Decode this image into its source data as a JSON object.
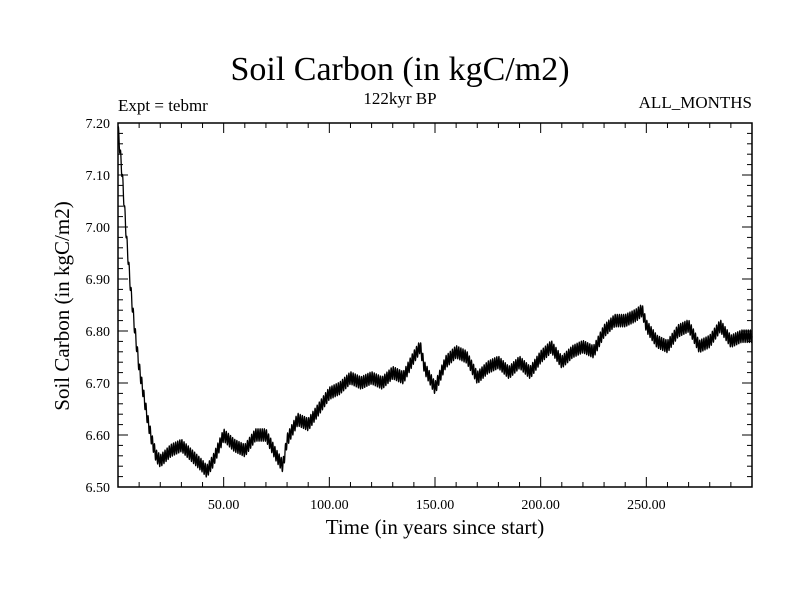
{
  "header": {
    "title": "Soil Carbon (in kgC/m2)",
    "subtitle": "122kyr BP",
    "experiment": "Expt = tebmr",
    "months": "ALL_MONTHS"
  },
  "chart_data": {
    "type": "line",
    "title": "Soil Carbon (in kgC/m2)",
    "subtitle": "122kyr BP",
    "xlabel": "Time (in years since start)",
    "ylabel": "Soil Carbon (in kgC/m2)",
    "xlim": [
      0,
      300
    ],
    "ylim": [
      6.5,
      7.2
    ],
    "xticks": [
      50,
      100,
      150,
      200,
      250
    ],
    "xtick_labels": [
      "50.00",
      "100.00",
      "150.00",
      "200.00",
      "250.00"
    ],
    "yticks": [
      6.5,
      6.6,
      6.7,
      6.8,
      6.9,
      7.0,
      7.1,
      7.2
    ],
    "ytick_labels": [
      "6.50",
      "6.60",
      "6.70",
      "6.80",
      "6.90",
      "7.00",
      "7.10",
      "7.20"
    ],
    "grid": false,
    "series": [
      {
        "name": "Soil Carbon",
        "seasonal_amplitude": 0.012,
        "x": [
          0,
          2,
          4,
          6,
          8,
          10,
          12,
          14,
          16,
          18,
          20,
          25,
          30,
          35,
          40,
          42,
          45,
          50,
          55,
          60,
          65,
          70,
          75,
          78,
          80,
          85,
          90,
          95,
          100,
          105,
          110,
          115,
          120,
          125,
          130,
          135,
          140,
          143,
          145,
          150,
          155,
          160,
          165,
          170,
          175,
          180,
          185,
          190,
          195,
          200,
          205,
          210,
          215,
          220,
          225,
          230,
          235,
          240,
          245,
          248,
          250,
          255,
          260,
          265,
          270,
          275,
          280,
          285,
          290,
          295,
          300
        ],
        "values": [
          7.19,
          7.1,
          6.98,
          6.88,
          6.8,
          6.73,
          6.68,
          6.63,
          6.59,
          6.56,
          6.55,
          6.57,
          6.58,
          6.56,
          6.54,
          6.53,
          6.55,
          6.6,
          6.58,
          6.57,
          6.6,
          6.6,
          6.56,
          6.54,
          6.59,
          6.63,
          6.62,
          6.65,
          6.68,
          6.69,
          6.71,
          6.7,
          6.71,
          6.7,
          6.72,
          6.71,
          6.75,
          6.77,
          6.73,
          6.69,
          6.74,
          6.76,
          6.75,
          6.71,
          6.73,
          6.74,
          6.72,
          6.74,
          6.72,
          6.75,
          6.77,
          6.74,
          6.76,
          6.77,
          6.76,
          6.8,
          6.82,
          6.82,
          6.83,
          6.84,
          6.81,
          6.78,
          6.77,
          6.8,
          6.81,
          6.77,
          6.78,
          6.81,
          6.78,
          6.79,
          6.79
        ]
      }
    ]
  }
}
